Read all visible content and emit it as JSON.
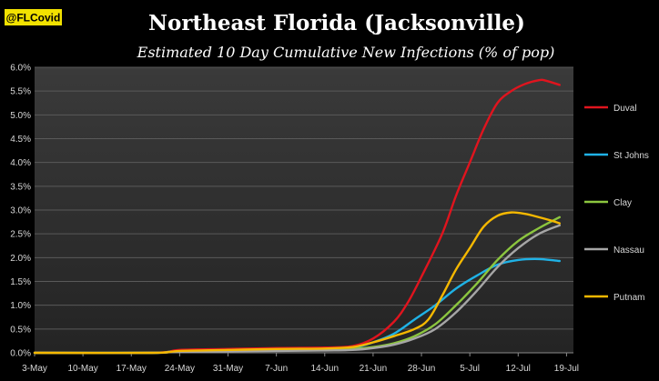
{
  "header": {
    "handle": "@FLCovid",
    "title": "Northeast Florida (Jacksonville)",
    "subtitle": "Estimated 10 Day Cumulative New Infections  (% of pop)"
  },
  "colors": {
    "background": "#000000",
    "plot_background_top": "#3a3a3a",
    "plot_background_bottom": "#242424",
    "grid": "#5a5a5a",
    "axis_text": "#d8d8d8",
    "handle_bg": "#f2e200",
    "handle_text": "#000000"
  },
  "chart_data": {
    "type": "line",
    "title": "Northeast Florida (Jacksonville)",
    "subtitle": "Estimated 10 Day Cumulative New Infections  (% of pop)",
    "xlabel": "",
    "ylabel": "",
    "x_domain": [
      "2020-05-03",
      "2020-07-20"
    ],
    "ylim": [
      0,
      6
    ],
    "x_ticks": [
      {
        "date": "2020-05-03",
        "label": "3-May"
      },
      {
        "date": "2020-05-10",
        "label": "10-May"
      },
      {
        "date": "2020-05-17",
        "label": "17-May"
      },
      {
        "date": "2020-05-24",
        "label": "24-May"
      },
      {
        "date": "2020-05-31",
        "label": "31-May"
      },
      {
        "date": "2020-06-07",
        "label": "7-Jun"
      },
      {
        "date": "2020-06-14",
        "label": "14-Jun"
      },
      {
        "date": "2020-06-21",
        "label": "21-Jun"
      },
      {
        "date": "2020-06-28",
        "label": "28-Jun"
      },
      {
        "date": "2020-07-05",
        "label": "5-Jul"
      },
      {
        "date": "2020-07-12",
        "label": "12-Jul"
      },
      {
        "date": "2020-07-19",
        "label": "19-Jul"
      }
    ],
    "y_ticks": [
      {
        "value": 0,
        "label": "0.0%"
      },
      {
        "value": 0.5,
        "label": "0.5%"
      },
      {
        "value": 1,
        "label": "1.0%"
      },
      {
        "value": 1.5,
        "label": "1.5%"
      },
      {
        "value": 2,
        "label": "2.0%"
      },
      {
        "value": 2.5,
        "label": "2.5%"
      },
      {
        "value": 3,
        "label": "3.0%"
      },
      {
        "value": 3.5,
        "label": "3.5%"
      },
      {
        "value": 4,
        "label": "4.0%"
      },
      {
        "value": 4.5,
        "label": "4.5%"
      },
      {
        "value": 5,
        "label": "5.0%"
      },
      {
        "value": 5.5,
        "label": "5.5%"
      },
      {
        "value": 6,
        "label": "6.0%"
      }
    ],
    "grid": true,
    "legend_position": "right",
    "series": [
      {
        "name": "Duval",
        "color": "#e0141e",
        "points": [
          [
            "2020-05-03",
            0
          ],
          [
            "2020-05-20",
            0
          ],
          [
            "2020-05-24",
            0.06
          ],
          [
            "2020-05-31",
            0.08
          ],
          [
            "2020-06-07",
            0.1
          ],
          [
            "2020-06-14",
            0.11
          ],
          [
            "2020-06-18",
            0.14
          ],
          [
            "2020-06-21",
            0.3
          ],
          [
            "2020-06-24",
            0.65
          ],
          [
            "2020-06-26",
            1.05
          ],
          [
            "2020-06-28",
            1.6
          ],
          [
            "2020-07-01",
            2.5
          ],
          [
            "2020-07-03",
            3.3
          ],
          [
            "2020-07-05",
            4.0
          ],
          [
            "2020-07-07",
            4.7
          ],
          [
            "2020-07-09",
            5.25
          ],
          [
            "2020-07-11",
            5.5
          ],
          [
            "2020-07-13",
            5.65
          ],
          [
            "2020-07-15",
            5.73
          ],
          [
            "2020-07-16",
            5.72
          ],
          [
            "2020-07-18",
            5.63
          ]
        ]
      },
      {
        "name": "St Johns",
        "color": "#1fb2e6",
        "points": [
          [
            "2020-05-03",
            0
          ],
          [
            "2020-05-20",
            0
          ],
          [
            "2020-05-24",
            0.03
          ],
          [
            "2020-06-07",
            0.05
          ],
          [
            "2020-06-14",
            0.06
          ],
          [
            "2020-06-18",
            0.1
          ],
          [
            "2020-06-21",
            0.22
          ],
          [
            "2020-06-24",
            0.4
          ],
          [
            "2020-06-27",
            0.7
          ],
          [
            "2020-06-30",
            1.0
          ],
          [
            "2020-07-03",
            1.35
          ],
          [
            "2020-07-06",
            1.62
          ],
          [
            "2020-07-09",
            1.85
          ],
          [
            "2020-07-12",
            1.95
          ],
          [
            "2020-07-15",
            1.97
          ],
          [
            "2020-07-18",
            1.93
          ]
        ]
      },
      {
        "name": "Clay",
        "color": "#8cc63f",
        "points": [
          [
            "2020-05-03",
            0
          ],
          [
            "2020-05-20",
            0
          ],
          [
            "2020-05-24",
            0.03
          ],
          [
            "2020-06-07",
            0.05
          ],
          [
            "2020-06-14",
            0.06
          ],
          [
            "2020-06-18",
            0.08
          ],
          [
            "2020-06-21",
            0.12
          ],
          [
            "2020-06-24",
            0.2
          ],
          [
            "2020-06-27",
            0.35
          ],
          [
            "2020-06-30",
            0.6
          ],
          [
            "2020-07-03",
            1.0
          ],
          [
            "2020-07-06",
            1.45
          ],
          [
            "2020-07-09",
            1.95
          ],
          [
            "2020-07-12",
            2.35
          ],
          [
            "2020-07-15",
            2.62
          ],
          [
            "2020-07-18",
            2.85
          ]
        ]
      },
      {
        "name": "Nassau",
        "color": "#a6a6a6",
        "points": [
          [
            "2020-05-03",
            0
          ],
          [
            "2020-05-20",
            0
          ],
          [
            "2020-05-24",
            0.02
          ],
          [
            "2020-06-07",
            0.04
          ],
          [
            "2020-06-14",
            0.05
          ],
          [
            "2020-06-18",
            0.06
          ],
          [
            "2020-06-21",
            0.1
          ],
          [
            "2020-06-24",
            0.17
          ],
          [
            "2020-06-27",
            0.3
          ],
          [
            "2020-06-30",
            0.5
          ],
          [
            "2020-07-03",
            0.85
          ],
          [
            "2020-07-06",
            1.3
          ],
          [
            "2020-07-09",
            1.8
          ],
          [
            "2020-07-12",
            2.2
          ],
          [
            "2020-07-15",
            2.5
          ],
          [
            "2020-07-18",
            2.68
          ]
        ]
      },
      {
        "name": "Putnam",
        "color": "#f5b800",
        "points": [
          [
            "2020-05-03",
            0
          ],
          [
            "2020-05-20",
            0
          ],
          [
            "2020-05-24",
            0.04
          ],
          [
            "2020-05-31",
            0.06
          ],
          [
            "2020-06-07",
            0.08
          ],
          [
            "2020-06-14",
            0.09
          ],
          [
            "2020-06-18",
            0.12
          ],
          [
            "2020-06-21",
            0.22
          ],
          [
            "2020-06-24",
            0.35
          ],
          [
            "2020-06-27",
            0.5
          ],
          [
            "2020-06-29",
            0.7
          ],
          [
            "2020-07-01",
            1.2
          ],
          [
            "2020-07-03",
            1.75
          ],
          [
            "2020-07-05",
            2.2
          ],
          [
            "2020-07-07",
            2.65
          ],
          [
            "2020-07-09",
            2.88
          ],
          [
            "2020-07-11",
            2.95
          ],
          [
            "2020-07-13",
            2.92
          ],
          [
            "2020-07-15",
            2.85
          ],
          [
            "2020-07-17",
            2.77
          ],
          [
            "2020-07-18",
            2.72
          ]
        ]
      }
    ]
  }
}
